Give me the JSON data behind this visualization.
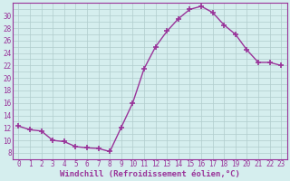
{
  "x": [
    0,
    1,
    2,
    3,
    4,
    5,
    6,
    7,
    8,
    9,
    10,
    11,
    12,
    13,
    14,
    15,
    16,
    17,
    18,
    19,
    20,
    21,
    22,
    23
  ],
  "y": [
    12.3,
    11.7,
    11.5,
    10.0,
    9.8,
    9.0,
    8.8,
    8.7,
    8.2,
    12.1,
    16.0,
    21.5,
    25.0,
    27.5,
    29.5,
    31.0,
    31.5,
    30.5,
    28.5,
    27.0,
    24.5,
    22.5,
    22.5,
    22.0
  ],
  "line_color": "#993399",
  "marker": "+",
  "markersize": 4,
  "markeredgewidth": 1.2,
  "linewidth": 1.0,
  "xlabel": "Windchill (Refroidissement éolien,°C)",
  "xlabel_fontsize": 6.5,
  "ytick_labels": [
    "8",
    "10",
    "12",
    "14",
    "16",
    "18",
    "20",
    "22",
    "24",
    "26",
    "28",
    "30"
  ],
  "yticks": [
    8,
    10,
    12,
    14,
    16,
    18,
    20,
    22,
    24,
    26,
    28,
    30
  ],
  "ylim": [
    7.0,
    32.0
  ],
  "xlim": [
    -0.5,
    23.5
  ],
  "bg_color": "#d5eeee",
  "grid_color": "#b0cccc",
  "tick_fontsize": 5.5,
  "xtick_labels": [
    "0",
    "1",
    "2",
    "3",
    "4",
    "5",
    "6",
    "7",
    "8",
    "9",
    "10",
    "11",
    "12",
    "13",
    "14",
    "15",
    "16",
    "17",
    "18",
    "19",
    "20",
    "21",
    "22",
    "23"
  ]
}
